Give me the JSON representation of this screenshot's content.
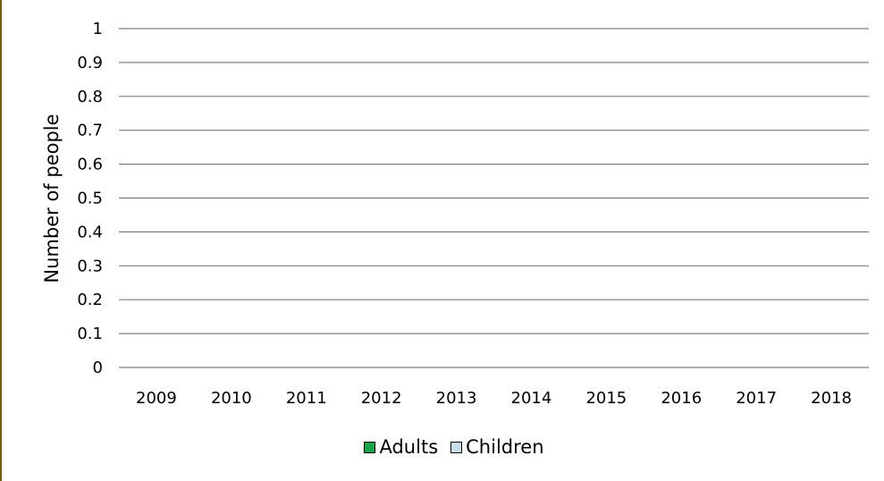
{
  "chart_data": {
    "type": "bar",
    "title": "",
    "xlabel": "",
    "ylabel": "Number of people",
    "categories": [
      "2009",
      "2010",
      "2011",
      "2012",
      "2013",
      "2014",
      "2015",
      "2016",
      "2017",
      "2018"
    ],
    "yticks": [
      "0",
      "0.1",
      "0.2",
      "0.3",
      "0.4",
      "0.5",
      "0.6",
      "0.7",
      "0.8",
      "0.9",
      "1"
    ],
    "ylim": [
      0,
      1
    ],
    "grid": true,
    "legend_position": "bottom",
    "series": [
      {
        "name": "Adults",
        "color": "#1aa34a",
        "values": [
          0,
          0,
          0,
          0,
          0,
          0,
          0,
          0,
          0,
          0
        ]
      },
      {
        "name": "Children",
        "color": "#c9dde8",
        "values": [
          0,
          0,
          0,
          0,
          0,
          0,
          0,
          0,
          0,
          0
        ]
      }
    ]
  }
}
